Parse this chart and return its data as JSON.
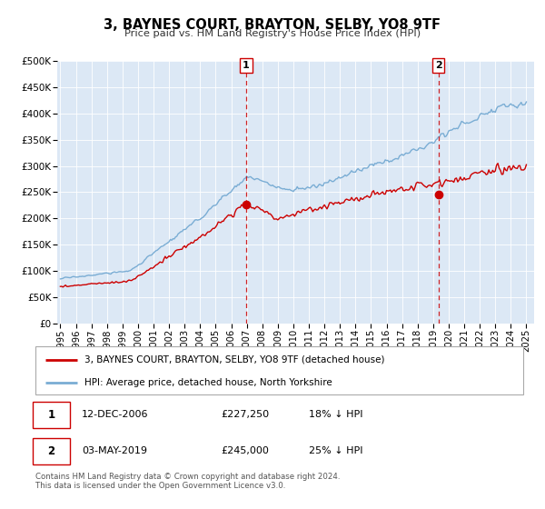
{
  "title": "3, BAYNES COURT, BRAYTON, SELBY, YO8 9TF",
  "subtitle": "Price paid vs. HM Land Registry's House Price Index (HPI)",
  "bg_color": "#dce8f5",
  "hpi_color": "#7aadd4",
  "price_color": "#cc0000",
  "vline_color": "#cc0000",
  "ylim": [
    0,
    500000
  ],
  "yticks": [
    0,
    50000,
    100000,
    150000,
    200000,
    250000,
    300000,
    350000,
    400000,
    450000,
    500000
  ],
  "ytick_labels": [
    "£0",
    "£50K",
    "£100K",
    "£150K",
    "£200K",
    "£250K",
    "£300K",
    "£350K",
    "£400K",
    "£450K",
    "£500K"
  ],
  "xlim_start": 1994.8,
  "xlim_end": 2025.5,
  "xticks": [
    1995,
    1996,
    1997,
    1998,
    1999,
    2000,
    2001,
    2002,
    2003,
    2004,
    2005,
    2006,
    2007,
    2008,
    2009,
    2010,
    2011,
    2012,
    2013,
    2014,
    2015,
    2016,
    2017,
    2018,
    2019,
    2020,
    2021,
    2022,
    2023,
    2024,
    2025
  ],
  "sale1_x": 2006.958,
  "sale1_y": 227250,
  "sale2_x": 2019.334,
  "sale2_y": 245000,
  "legend_line1": "3, BAYNES COURT, BRAYTON, SELBY, YO8 9TF (detached house)",
  "legend_line2": "HPI: Average price, detached house, North Yorkshire",
  "table_row1": [
    "1",
    "12-DEC-2006",
    "£227,250",
    "18% ↓ HPI"
  ],
  "table_row2": [
    "2",
    "03-MAY-2019",
    "£245,000",
    "25% ↓ HPI"
  ],
  "footer": "Contains HM Land Registry data © Crown copyright and database right 2024.\nThis data is licensed under the Open Government Licence v3.0."
}
